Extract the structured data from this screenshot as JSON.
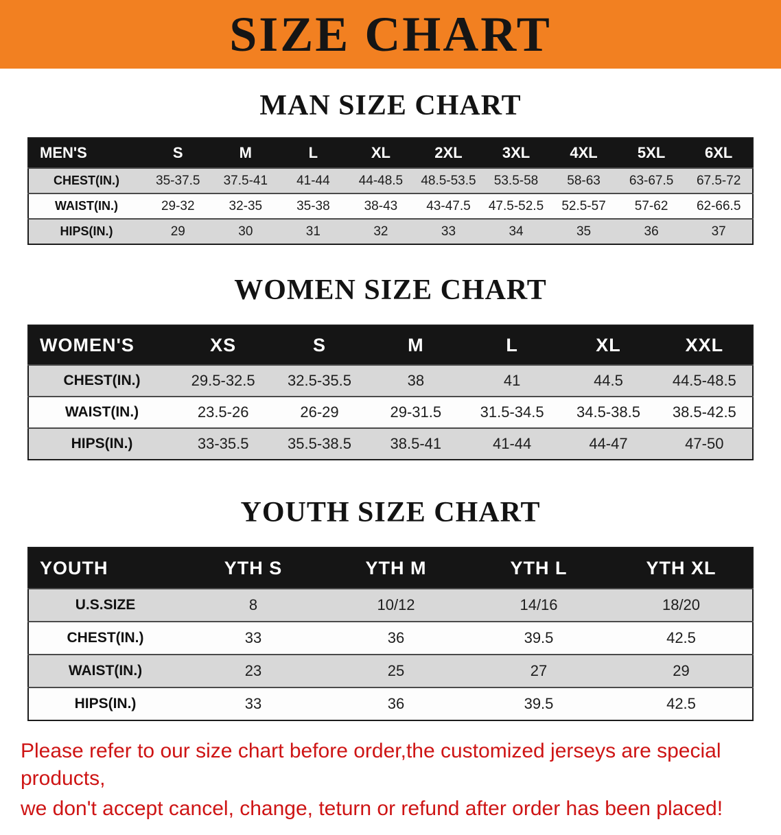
{
  "banner": {
    "title": "SIZE CHART",
    "bg_color": "#f28021",
    "text_color": "#151515"
  },
  "sections": [
    {
      "id": "men",
      "heading": "MAN SIZE CHART",
      "table": {
        "name": "mens-size-table",
        "header": [
          "MEN'S",
          "S",
          "M",
          "L",
          "XL",
          "2XL",
          "3XL",
          "4XL",
          "5XL",
          "6XL"
        ],
        "rows": [
          {
            "label": "CHEST(IN.)",
            "values": [
              "35-37.5",
              "37.5-41",
              "41-44",
              "44-48.5",
              "48.5-53.5",
              "53.5-58",
              "58-63",
              "63-67.5",
              "67.5-72"
            ]
          },
          {
            "label": "WAIST(IN.)",
            "values": [
              "29-32",
              "32-35",
              "35-38",
              "38-43",
              "43-47.5",
              "47.5-52.5",
              "52.5-57",
              "57-62",
              "62-66.5"
            ]
          },
          {
            "label": "HIPS(IN.)",
            "values": [
              "29",
              "30",
              "31",
              "32",
              "33",
              "34",
              "35",
              "36",
              "37"
            ]
          }
        ]
      }
    },
    {
      "id": "women",
      "heading": "WOMEN SIZE CHART",
      "table": {
        "name": "womens-size-table",
        "header": [
          "WOMEN'S",
          "XS",
          "S",
          "M",
          "L",
          "XL",
          "XXL"
        ],
        "rows": [
          {
            "label": "CHEST(IN.)",
            "values": [
              "29.5-32.5",
              "32.5-35.5",
              "38",
              "41",
              "44.5",
              "44.5-48.5"
            ]
          },
          {
            "label": "WAIST(IN.)",
            "values": [
              "23.5-26",
              "26-29",
              "29-31.5",
              "31.5-34.5",
              "34.5-38.5",
              "38.5-42.5"
            ]
          },
          {
            "label": "HIPS(IN.)",
            "values": [
              "33-35.5",
              "35.5-38.5",
              "38.5-41",
              "41-44",
              "44-47",
              "47-50"
            ]
          }
        ]
      }
    },
    {
      "id": "youth",
      "heading": "YOUTH SIZE CHART",
      "table": {
        "name": "youth-size-table",
        "header": [
          "YOUTH",
          "YTH S",
          "YTH M",
          "YTH L",
          "YTH XL"
        ],
        "rows": [
          {
            "label": "U.S.SIZE",
            "values": [
              "8",
              "10/12",
              "14/16",
              "18/20"
            ]
          },
          {
            "label": "CHEST(IN.)",
            "values": [
              "33",
              "36",
              "39.5",
              "42.5"
            ]
          },
          {
            "label": "WAIST(IN.)",
            "values": [
              "23",
              "25",
              "27",
              "29"
            ]
          },
          {
            "label": "HIPS(IN.)",
            "values": [
              "33",
              "36",
              "39.5",
              "42.5"
            ]
          }
        ]
      }
    }
  ],
  "note": {
    "color": "#ce1414",
    "lines": [
      "Please refer to our size chart before order,the customized jerseys are special products,",
      "we don't accept cancel, change, teturn or refund after order has been placed!"
    ]
  }
}
